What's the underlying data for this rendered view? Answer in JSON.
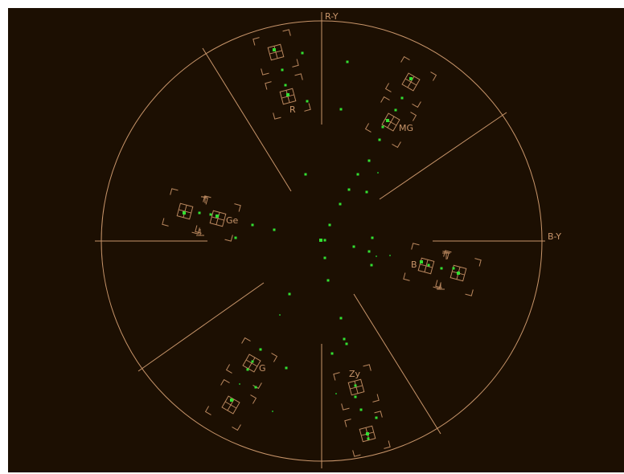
{
  "vectorscope": {
    "axis_labels": {
      "vertical": "R-Y",
      "horizontal": "B-Y"
    },
    "target_labels": {
      "red": "R",
      "magenta": "MG",
      "yellow": "Ge",
      "blue": "B",
      "green": "G",
      "cyan": "Zy"
    },
    "colors": {
      "background": "#1c0f02",
      "graticule": "#c8956a",
      "trace": "#32e032"
    }
  }
}
